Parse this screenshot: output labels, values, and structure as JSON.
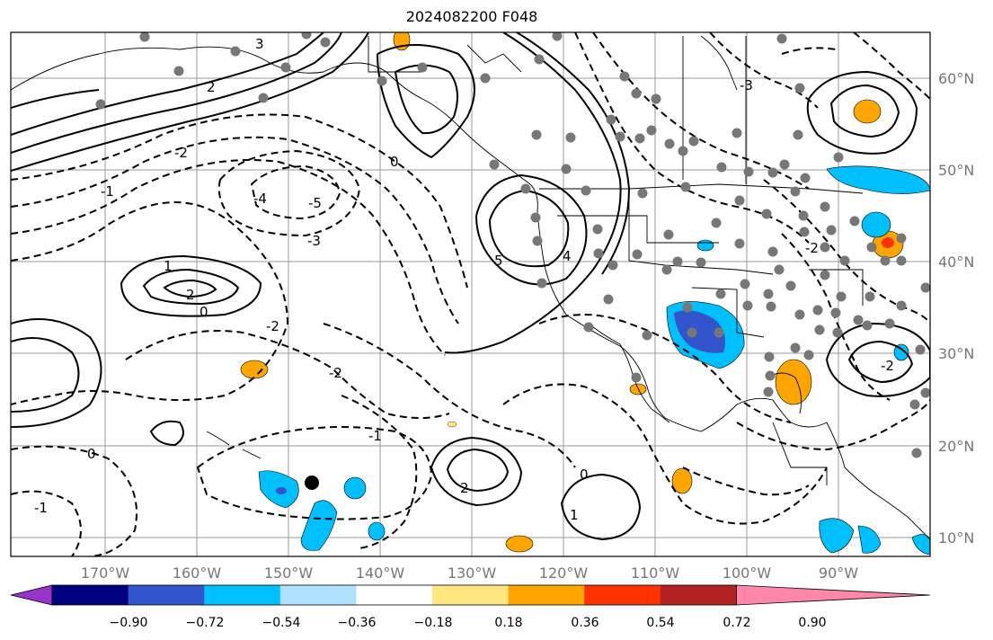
{
  "title": "2024082200 F048",
  "lon_labels": [
    "170°W",
    "160°W",
    "150°W",
    "140°W",
    "130°W",
    "120°W",
    "110°W",
    "100°W",
    "90°W"
  ],
  "lat_labels": [
    "60°N",
    "50°N",
    "40°N",
    "30°N",
    "20°N",
    "10°N"
  ],
  "colorbar": {
    "tick_labels": [
      "−0.90",
      "−0.72",
      "−0.54",
      "−0.36",
      "−0.18",
      "0.18",
      "0.36",
      "0.54",
      "0.72",
      "0.90"
    ],
    "colors": [
      "#9933cc",
      "#000080",
      "#3355cc",
      "#00bfff",
      "#b0e0ff",
      "#ffffff",
      "#ffe680",
      "#ffa500",
      "#ff3300",
      "#b22222",
      "#ff88aa"
    ]
  },
  "contour_labels": [
    "3",
    "2",
    "0",
    "-1",
    "-2",
    "-3",
    "-4",
    "-5",
    "5",
    "4",
    "1",
    "0",
    "-2",
    "2",
    "-1",
    "-2",
    "0",
    "2",
    "-1",
    "0",
    "1",
    "-2",
    "-3",
    "-2"
  ],
  "station_marker": "black-dot"
}
